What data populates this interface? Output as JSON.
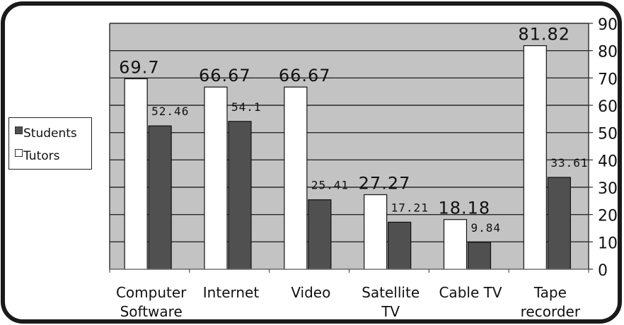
{
  "colors": {
    "plot_background": "#c3c3c3",
    "students": "#505050",
    "tutors": "#ffffff",
    "grid": "#2b2b2b",
    "frame": "#1a1a1a"
  },
  "legend": {
    "placement": "left",
    "items": [
      {
        "label": "Students",
        "color": "#505050"
      },
      {
        "label": "Tutors",
        "color": "#ffffff"
      }
    ]
  },
  "chart_data": {
    "type": "bar",
    "title": "",
    "xlabel": "",
    "ylabel": "",
    "ylim": [
      0,
      90
    ],
    "y_ticks": [
      0,
      10,
      20,
      30,
      40,
      50,
      60,
      70,
      80,
      90
    ],
    "y_axis_side": "right",
    "grid": true,
    "categories": [
      [
        "Computer",
        "Software"
      ],
      [
        "Internet"
      ],
      [
        "Video"
      ],
      [
        "Satellite",
        "TV"
      ],
      [
        "Cable TV"
      ],
      [
        "Tape",
        "recorder"
      ]
    ],
    "series": [
      {
        "name": "Tutors",
        "values": [
          69.7,
          66.67,
          66.67,
          27.27,
          18.18,
          81.82
        ],
        "labels": [
          "69.7",
          "66.67",
          "66.67",
          "27.27",
          "18.18",
          "81.82"
        ]
      },
      {
        "name": "Students",
        "values": [
          52.46,
          54.1,
          25.41,
          17.21,
          9.84,
          33.61
        ],
        "labels": [
          "52.46",
          "54.1",
          "25.41",
          "17.21",
          "9.84",
          "33.61"
        ]
      }
    ]
  }
}
